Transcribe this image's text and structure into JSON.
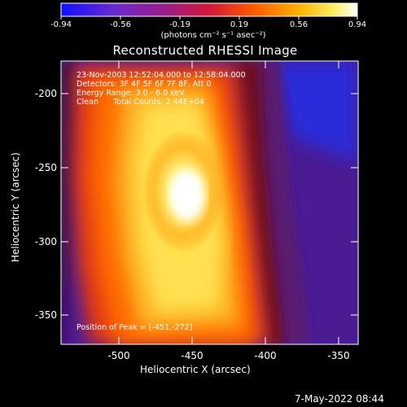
{
  "colorbar": {
    "ticks": [
      "-0.94",
      "-0.56",
      "-0.19",
      "0.19",
      "0.56",
      "0.94"
    ],
    "units": "(photons cm⁻² s⁻¹ asec⁻²)"
  },
  "title": "Reconstructed RHESSI Image",
  "annotations": {
    "time": "23-Nov-2003 12:52:04.000 to 12:58:04.000",
    "detectors": "Detectors: 3F 4F 5F 6F 7F 8F, Att 0",
    "energy": "Energy Range: 3.0 - 6.0 keV",
    "clean": "Clean      Total Counts: 2.44E+04",
    "peak": "Position of Peak = [-451,-272]"
  },
  "axes": {
    "xlabel": "Heliocentric X (arcsec)",
    "ylabel": "Heliocentric Y (arcsec)",
    "xticks": [
      "-500",
      "-450",
      "-400",
      "-350"
    ],
    "yticks": [
      "-200",
      "-250",
      "-300",
      "-350"
    ]
  },
  "footer": {
    "date": "7-May-2022 08:44"
  }
}
